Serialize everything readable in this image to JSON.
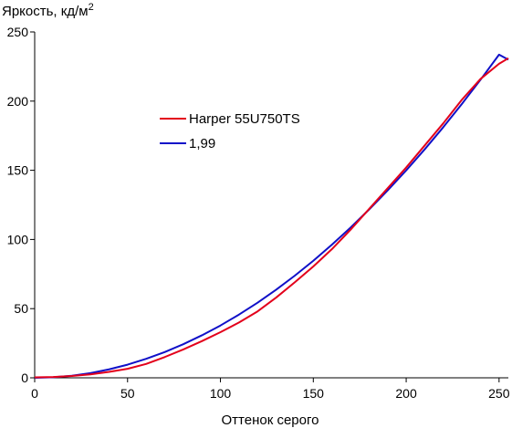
{
  "chart_data": {
    "type": "line",
    "title": "",
    "xlabel": "Оттенок серого",
    "ylabel": "Яркость, кд/м",
    "ylabel_superscript": "2",
    "xlim": [
      0,
      255
    ],
    "ylim": [
      0,
      250
    ],
    "x_ticks": [
      0,
      50,
      100,
      150,
      200,
      250
    ],
    "y_ticks": [
      0,
      50,
      100,
      150,
      200,
      250
    ],
    "x_tick_labels": [
      "0",
      "50",
      "100",
      "150",
      "200",
      "250"
    ],
    "y_tick_labels": [
      "0",
      "50",
      "100",
      "150",
      "200",
      "250"
    ],
    "grid": false,
    "legend_position": "upper-left-center",
    "series": [
      {
        "name": "Harper 55U750TS",
        "color": "#e3001b",
        "x": [
          0,
          10,
          20,
          30,
          40,
          50,
          60,
          70,
          80,
          90,
          100,
          110,
          120,
          130,
          140,
          150,
          160,
          170,
          180,
          190,
          200,
          210,
          220,
          230,
          240,
          250,
          255
        ],
        "y": [
          0.3,
          0.6,
          1.3,
          2.5,
          4.3,
          6.5,
          10,
          15,
          20.5,
          26.5,
          33,
          40,
          48,
          58,
          69,
          80.5,
          93,
          107,
          122,
          137,
          152,
          168,
          184,
          201,
          216,
          227,
          231
        ]
      },
      {
        "name": "1,99",
        "color": "#1010c8",
        "x": [
          0,
          10,
          20,
          30,
          40,
          50,
          60,
          70,
          80,
          90,
          100,
          110,
          120,
          130,
          140,
          150,
          160,
          170,
          180,
          190,
          200,
          210,
          220,
          230,
          240,
          250,
          255
        ],
        "y": [
          0,
          0.4,
          1.5,
          3.4,
          6.1,
          9.5,
          13.7,
          18.6,
          24.3,
          30.7,
          37.8,
          45.7,
          54.3,
          63.7,
          73.8,
          84.6,
          96.2,
          108.5,
          121.6,
          135.4,
          149.9,
          165.2,
          181.2,
          198,
          215.4,
          233.6,
          230
        ]
      }
    ]
  }
}
